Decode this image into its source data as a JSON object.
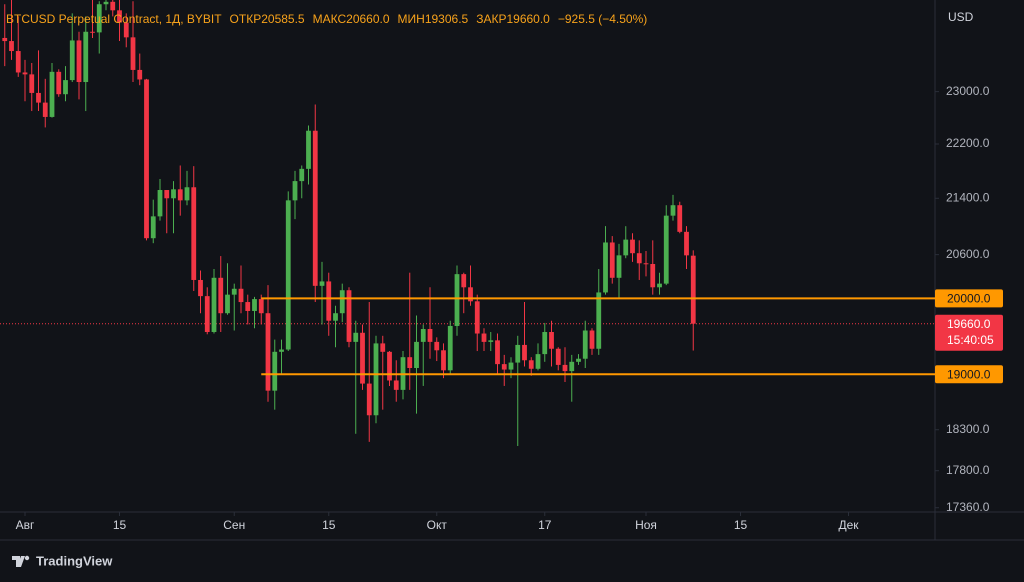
{
  "chart_data": {
    "type": "candlestick",
    "legend": {
      "symbol": "BTCUSD Perpetual Contract, 1Д, BYBIT",
      "fields": [
        {
          "label": "ОТКР",
          "value": "20585.5"
        },
        {
          "label": "МАКС",
          "value": "20660.0"
        },
        {
          "label": "МИН",
          "value": "19306.5"
        },
        {
          "label": "ЗАКР",
          "value": "19660.0"
        }
      ],
      "change": "−925.5 (−4.50%)"
    },
    "y_axis_label": "USD",
    "x": [
      "07-29",
      "07-30",
      "07-31",
      "08-01",
      "08-02",
      "08-03",
      "08-04",
      "08-05",
      "08-06",
      "08-07",
      "08-08",
      "08-09",
      "08-10",
      "08-11",
      "08-12",
      "08-13",
      "08-14",
      "08-15",
      "08-16",
      "08-17",
      "08-18",
      "08-19",
      "08-20",
      "08-21",
      "08-22",
      "08-23",
      "08-24",
      "08-25",
      "08-26",
      "08-27",
      "08-28",
      "08-29",
      "08-30",
      "08-31",
      "09-01",
      "09-02",
      "09-03",
      "09-04",
      "09-05",
      "09-06",
      "09-07",
      "09-08",
      "09-09",
      "09-10",
      "09-11",
      "09-12",
      "09-13",
      "09-14",
      "09-15",
      "09-16",
      "09-17",
      "09-18",
      "09-19",
      "09-20",
      "09-21",
      "09-22",
      "09-23",
      "09-24",
      "09-25",
      "09-26",
      "09-27",
      "09-28",
      "09-29",
      "09-30",
      "10-01",
      "10-02",
      "10-03",
      "10-04",
      "10-05",
      "10-06",
      "10-07",
      "10-08",
      "10-09",
      "10-10",
      "10-11",
      "10-12",
      "10-13",
      "10-14",
      "10-15",
      "10-16",
      "10-17",
      "10-18",
      "10-19",
      "10-20",
      "10-21",
      "10-22",
      "10-23",
      "10-24",
      "10-25",
      "10-26",
      "10-27",
      "10-28",
      "10-29",
      "10-30",
      "10-31",
      "11-01",
      "11-02",
      "11-03",
      "11-04",
      "11-05",
      "11-06",
      "11-07",
      "11-08"
    ],
    "open": [
      23850,
      23800,
      23640,
      23300,
      23270,
      22980,
      22830,
      22610,
      23310,
      22960,
      23180,
      23810,
      23150,
      23950,
      23940,
      24400,
      24440,
      24300,
      24100,
      23860,
      23340,
      23190,
      20830,
      21140,
      21520,
      21400,
      21530,
      21370,
      21560,
      20250,
      20030,
      19550,
      20280,
      19800,
      20050,
      20130,
      19950,
      19830,
      19990,
      19800,
      18790,
      19290,
      19320,
      21370,
      21650,
      21830,
      22400,
      20170,
      20230,
      19700,
      19800,
      20110,
      19420,
      19540,
      18880,
      18480,
      19400,
      19290,
      18920,
      18800,
      19220,
      19080,
      19420,
      19590,
      19420,
      19310,
      19050,
      19630,
      20330,
      20150,
      19960,
      19530,
      19420,
      19440,
      19130,
      19060,
      19150,
      19380,
      19180,
      19070,
      19260,
      19550,
      19330,
      19120,
      19040,
      19160,
      19200,
      19570,
      19330,
      20080,
      20770,
      20280,
      20590,
      20810,
      20620,
      20480,
      20470,
      20150,
      20200,
      21150,
      21300,
      20920,
      20585.5
    ],
    "high": [
      24400,
      24650,
      24200,
      23500,
      23450,
      23650,
      23200,
      23450,
      23350,
      23400,
      24250,
      23950,
      24200,
      24900,
      24450,
      24900,
      25050,
      25200,
      24250,
      24450,
      23600,
      23200,
      21380,
      21680,
      21520,
      21650,
      21880,
      21800,
      21870,
      20380,
      20150,
      20400,
      20580,
      20480,
      20200,
      20450,
      20050,
      20020,
      20050,
      20180,
      19450,
      19450,
      21500,
      21800,
      21880,
      22480,
      22800,
      20500,
      20350,
      19900,
      20200,
      20150,
      19700,
      19650,
      19950,
      19500,
      19500,
      19300,
      19180,
      19300,
      20350,
      19770,
      19650,
      20150,
      19480,
      19400,
      19700,
      20450,
      20350,
      20450,
      20050,
      19600,
      19550,
      19530,
      19250,
      19220,
      19500,
      19950,
      19220,
      19400,
      19670,
      19700,
      19350,
      19350,
      19250,
      19260,
      19700,
      19600,
      20400,
      21000,
      20860,
      20750,
      21000,
      20900,
      20800,
      20650,
      20800,
      20350,
      21300,
      21450,
      21350,
      21000,
      20660
    ],
    "low": [
      23400,
      23500,
      23230,
      22850,
      22700,
      22700,
      22450,
      22600,
      22920,
      22850,
      23150,
      22880,
      22700,
      23850,
      23600,
      24300,
      24200,
      23800,
      23700,
      23150,
      23100,
      20800,
      20760,
      21080,
      20900,
      20900,
      21150,
      21300,
      20100,
      19800,
      19520,
      19530,
      19550,
      19780,
      19570,
      19800,
      19650,
      19600,
      19650,
      18650,
      18550,
      19000,
      19300,
      21100,
      21400,
      21600,
      19950,
      19650,
      19500,
      19350,
      19680,
      19350,
      18250,
      18800,
      18150,
      18380,
      18550,
      18850,
      18650,
      18680,
      18800,
      18500,
      18850,
      19200,
      19170,
      18950,
      19000,
      19500,
      19800,
      19900,
      19300,
      19300,
      19300,
      19000,
      18850,
      18950,
      18100,
      19100,
      18980,
      19050,
      19160,
      19100,
      19050,
      18900,
      18650,
      19120,
      19080,
      19250,
      19250,
      20050,
      20200,
      20000,
      20550,
      20500,
      20250,
      20300,
      20050,
      20050,
      20180,
      21080,
      20900,
      20400,
      19306.5
    ],
    "close": [
      23800,
      23640,
      23300,
      23270,
      22980,
      22830,
      22610,
      23310,
      22960,
      23180,
      23810,
      23150,
      23950,
      23940,
      24400,
      24440,
      24300,
      24100,
      23860,
      23340,
      23190,
      20830,
      21140,
      21520,
      21400,
      21530,
      21370,
      21560,
      20250,
      20030,
      19550,
      20280,
      19800,
      20050,
      20130,
      19950,
      19830,
      19990,
      19800,
      18790,
      19290,
      19320,
      21370,
      21650,
      21830,
      22400,
      20170,
      20230,
      19700,
      19800,
      20110,
      19420,
      19540,
      18880,
      18480,
      19400,
      19290,
      18920,
      18800,
      19220,
      19080,
      19420,
      19590,
      19420,
      19310,
      19050,
      19630,
      20330,
      20150,
      19960,
      19530,
      19420,
      19440,
      19130,
      19060,
      19150,
      19380,
      19180,
      19070,
      19260,
      19550,
      19330,
      19120,
      19040,
      19160,
      19200,
      19570,
      19330,
      20080,
      20770,
      20280,
      20590,
      20810,
      20620,
      20480,
      20470,
      20150,
      20200,
      21150,
      21300,
      20920,
      20590,
      19660
    ],
    "up_color": "#4caf50",
    "down_color": "#f23645",
    "log_scale": true,
    "ylim": [
      17310,
      24470
    ],
    "yticks": [
      {
        "value": 23000,
        "label": "23000.0"
      },
      {
        "value": 22200,
        "label": "22200.0"
      },
      {
        "value": 21400,
        "label": "21400.0"
      },
      {
        "value": 20600,
        "label": "20600.0"
      },
      {
        "value": 18300,
        "label": "18300.0"
      },
      {
        "value": 17800,
        "label": "17800.0"
      },
      {
        "value": 17360,
        "label": "17360.0"
      }
    ],
    "xticks": [
      {
        "value": "08-01",
        "label": "Авг"
      },
      {
        "value": "08-15",
        "label": "15"
      },
      {
        "value": "09-01",
        "label": "Сен"
      },
      {
        "value": "09-15",
        "label": "15"
      },
      {
        "value": "10-01",
        "label": "Окт"
      },
      {
        "value": "10-17",
        "label": "17"
      },
      {
        "value": "11-01",
        "label": "Ноя"
      },
      {
        "value": "11-15",
        "label": "15"
      },
      {
        "value": "12-01",
        "label": "Дек"
      }
    ],
    "hlines": [
      {
        "value": 20000,
        "label": "20000.0",
        "start": "09-05",
        "color": "#ff9800"
      },
      {
        "value": 19000,
        "label": "19000.0",
        "start": "09-05",
        "color": "#ff9800"
      }
    ],
    "last_price": {
      "value": 19660,
      "label": "19660.0",
      "countdown": "15:40:05",
      "color": "#f23645"
    },
    "footer": "TradingView"
  }
}
